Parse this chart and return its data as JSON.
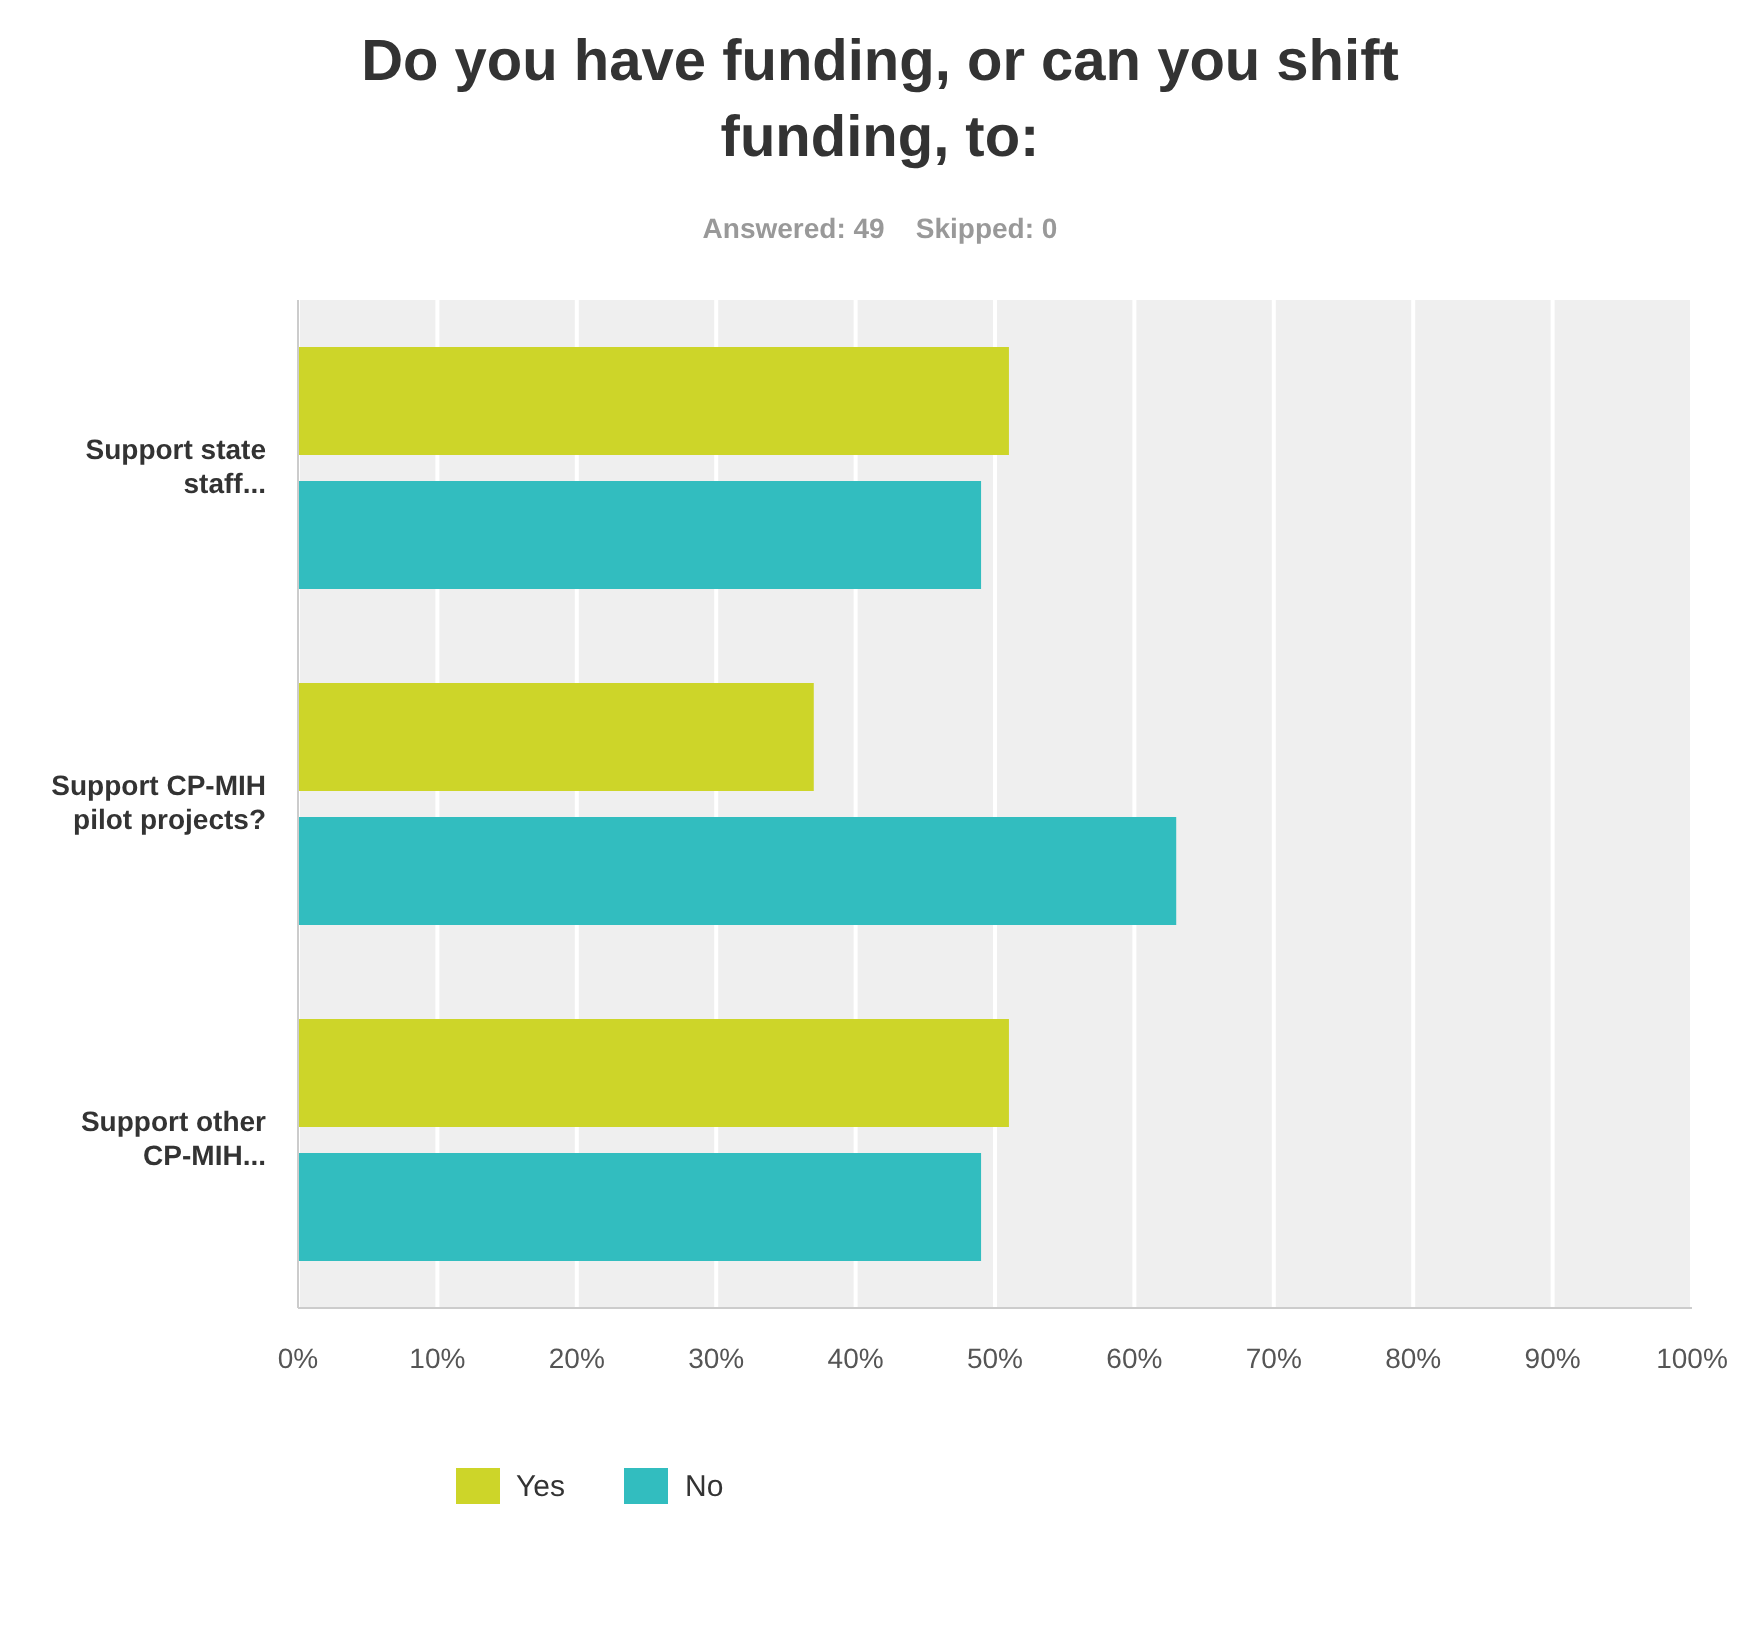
{
  "chart_data": {
    "type": "bar",
    "orientation": "horizontal",
    "title": "Do you have funding, or can you shift funding, to:",
    "subtitle": "Answered: 49    Skipped: 0",
    "categories": [
      "Support state staff...",
      "Support CP-MIH pilot projects?",
      "Support other CP-MIH..."
    ],
    "series": [
      {
        "name": "Yes",
        "color": "#cdd529",
        "values": [
          51,
          37,
          51
        ]
      },
      {
        "name": "No",
        "color": "#32bdbf",
        "values": [
          49,
          63,
          49
        ]
      }
    ],
    "xlim": [
      0,
      100
    ],
    "xticks": [
      {
        "value": 0,
        "label": "0%"
      },
      {
        "value": 10,
        "label": "10%"
      },
      {
        "value": 20,
        "label": "20%"
      },
      {
        "value": 30,
        "label": "30%"
      },
      {
        "value": 40,
        "label": "40%"
      },
      {
        "value": 50,
        "label": "50%"
      },
      {
        "value": 60,
        "label": "60%"
      },
      {
        "value": 70,
        "label": "70%"
      },
      {
        "value": 80,
        "label": "80%"
      },
      {
        "value": 90,
        "label": "90%"
      },
      {
        "value": 100,
        "label": "100%"
      }
    ],
    "grid": "x",
    "legend": "bottom left"
  }
}
